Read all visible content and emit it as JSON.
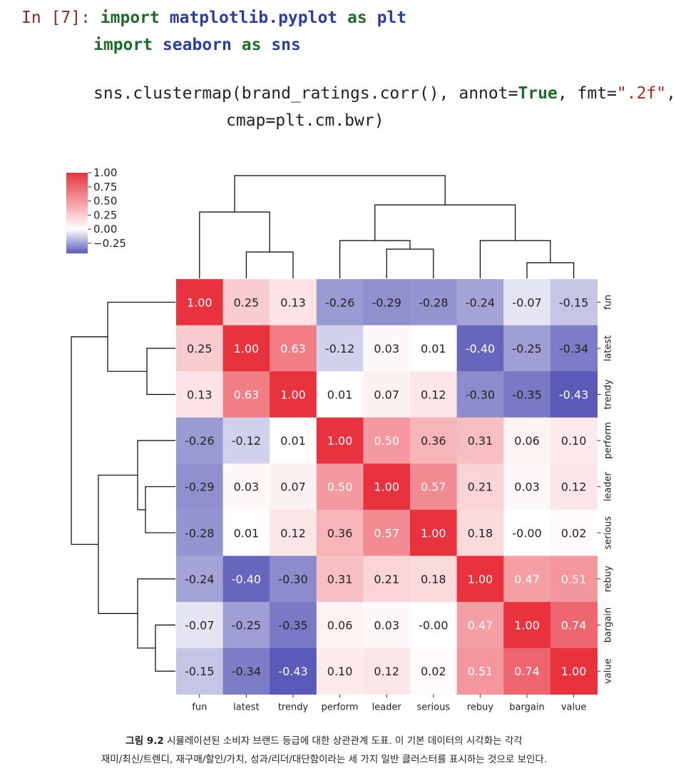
{
  "code": {
    "prompt": "In [7]:",
    "line1": {
      "kw1": "import",
      "mod": "matplotlib.pyplot",
      "kw2": "as",
      "alias": "plt"
    },
    "line2": {
      "kw1": "import",
      "mod": "seaborn",
      "kw2": "as",
      "alias": "sns"
    },
    "line3": {
      "pre": "sns.clustermap(brand_ratings.corr(), annot=",
      "const": "True",
      "mid": ", fmt=",
      "str": "\".2f\"",
      "post": ","
    },
    "line4": "cmap=plt.cm.bwr)"
  },
  "caption": {
    "label": "그림 9.2",
    "line1": "시뮬레이션된 소비자 브랜드 등급에 대한 상관관계 도표. 이 기본 데이터의 시각화는 각각",
    "line2": "재미/최신/트렌디, 재구매/할인/가치, 성과/리더/대단함이라는 세 가지 일반 클러스터를 표시하는 것으로 보인다."
  },
  "chart_data": {
    "type": "heatmap",
    "labels": [
      "fun",
      "latest",
      "trendy",
      "perform",
      "leader",
      "serious",
      "rebuy",
      "bargain",
      "value"
    ],
    "matrix": [
      [
        1.0,
        0.25,
        0.13,
        -0.26,
        -0.29,
        -0.28,
        -0.24,
        -0.07,
        -0.15
      ],
      [
        0.25,
        1.0,
        0.63,
        -0.12,
        0.03,
        0.01,
        -0.4,
        -0.25,
        -0.34
      ],
      [
        0.13,
        0.63,
        1.0,
        0.01,
        0.07,
        0.12,
        -0.3,
        -0.35,
        -0.43
      ],
      [
        -0.26,
        -0.12,
        0.01,
        1.0,
        0.5,
        0.36,
        0.31,
        0.06,
        0.1
      ],
      [
        -0.29,
        0.03,
        0.07,
        0.5,
        1.0,
        0.57,
        0.21,
        0.03,
        0.12
      ],
      [
        -0.28,
        0.01,
        0.12,
        0.36,
        0.57,
        1.0,
        0.18,
        -0.0,
        0.02
      ],
      [
        -0.24,
        -0.4,
        -0.3,
        0.31,
        0.21,
        0.18,
        1.0,
        0.47,
        0.51
      ],
      [
        -0.07,
        -0.25,
        -0.35,
        0.06,
        0.03,
        -0.0,
        0.47,
        1.0,
        0.74
      ],
      [
        -0.15,
        -0.34,
        -0.43,
        0.1,
        0.12,
        0.02,
        0.51,
        0.74,
        1.0
      ]
    ],
    "annot_fmt": ".2f",
    "colormap": "bwr",
    "colorbar": {
      "vmin": -0.43,
      "vmax": 1.0,
      "ticks": [
        "1.00",
        "0.75",
        "0.50",
        "0.25",
        "0.00",
        "−0.25"
      ],
      "tick_values": [
        1.0,
        0.75,
        0.5,
        0.25,
        0.0,
        -0.25
      ]
    },
    "colors": {
      "low": "#5a5ab8",
      "mid": "#ffffff",
      "high": "#e8323e"
    },
    "dendrogram": "top and left"
  }
}
